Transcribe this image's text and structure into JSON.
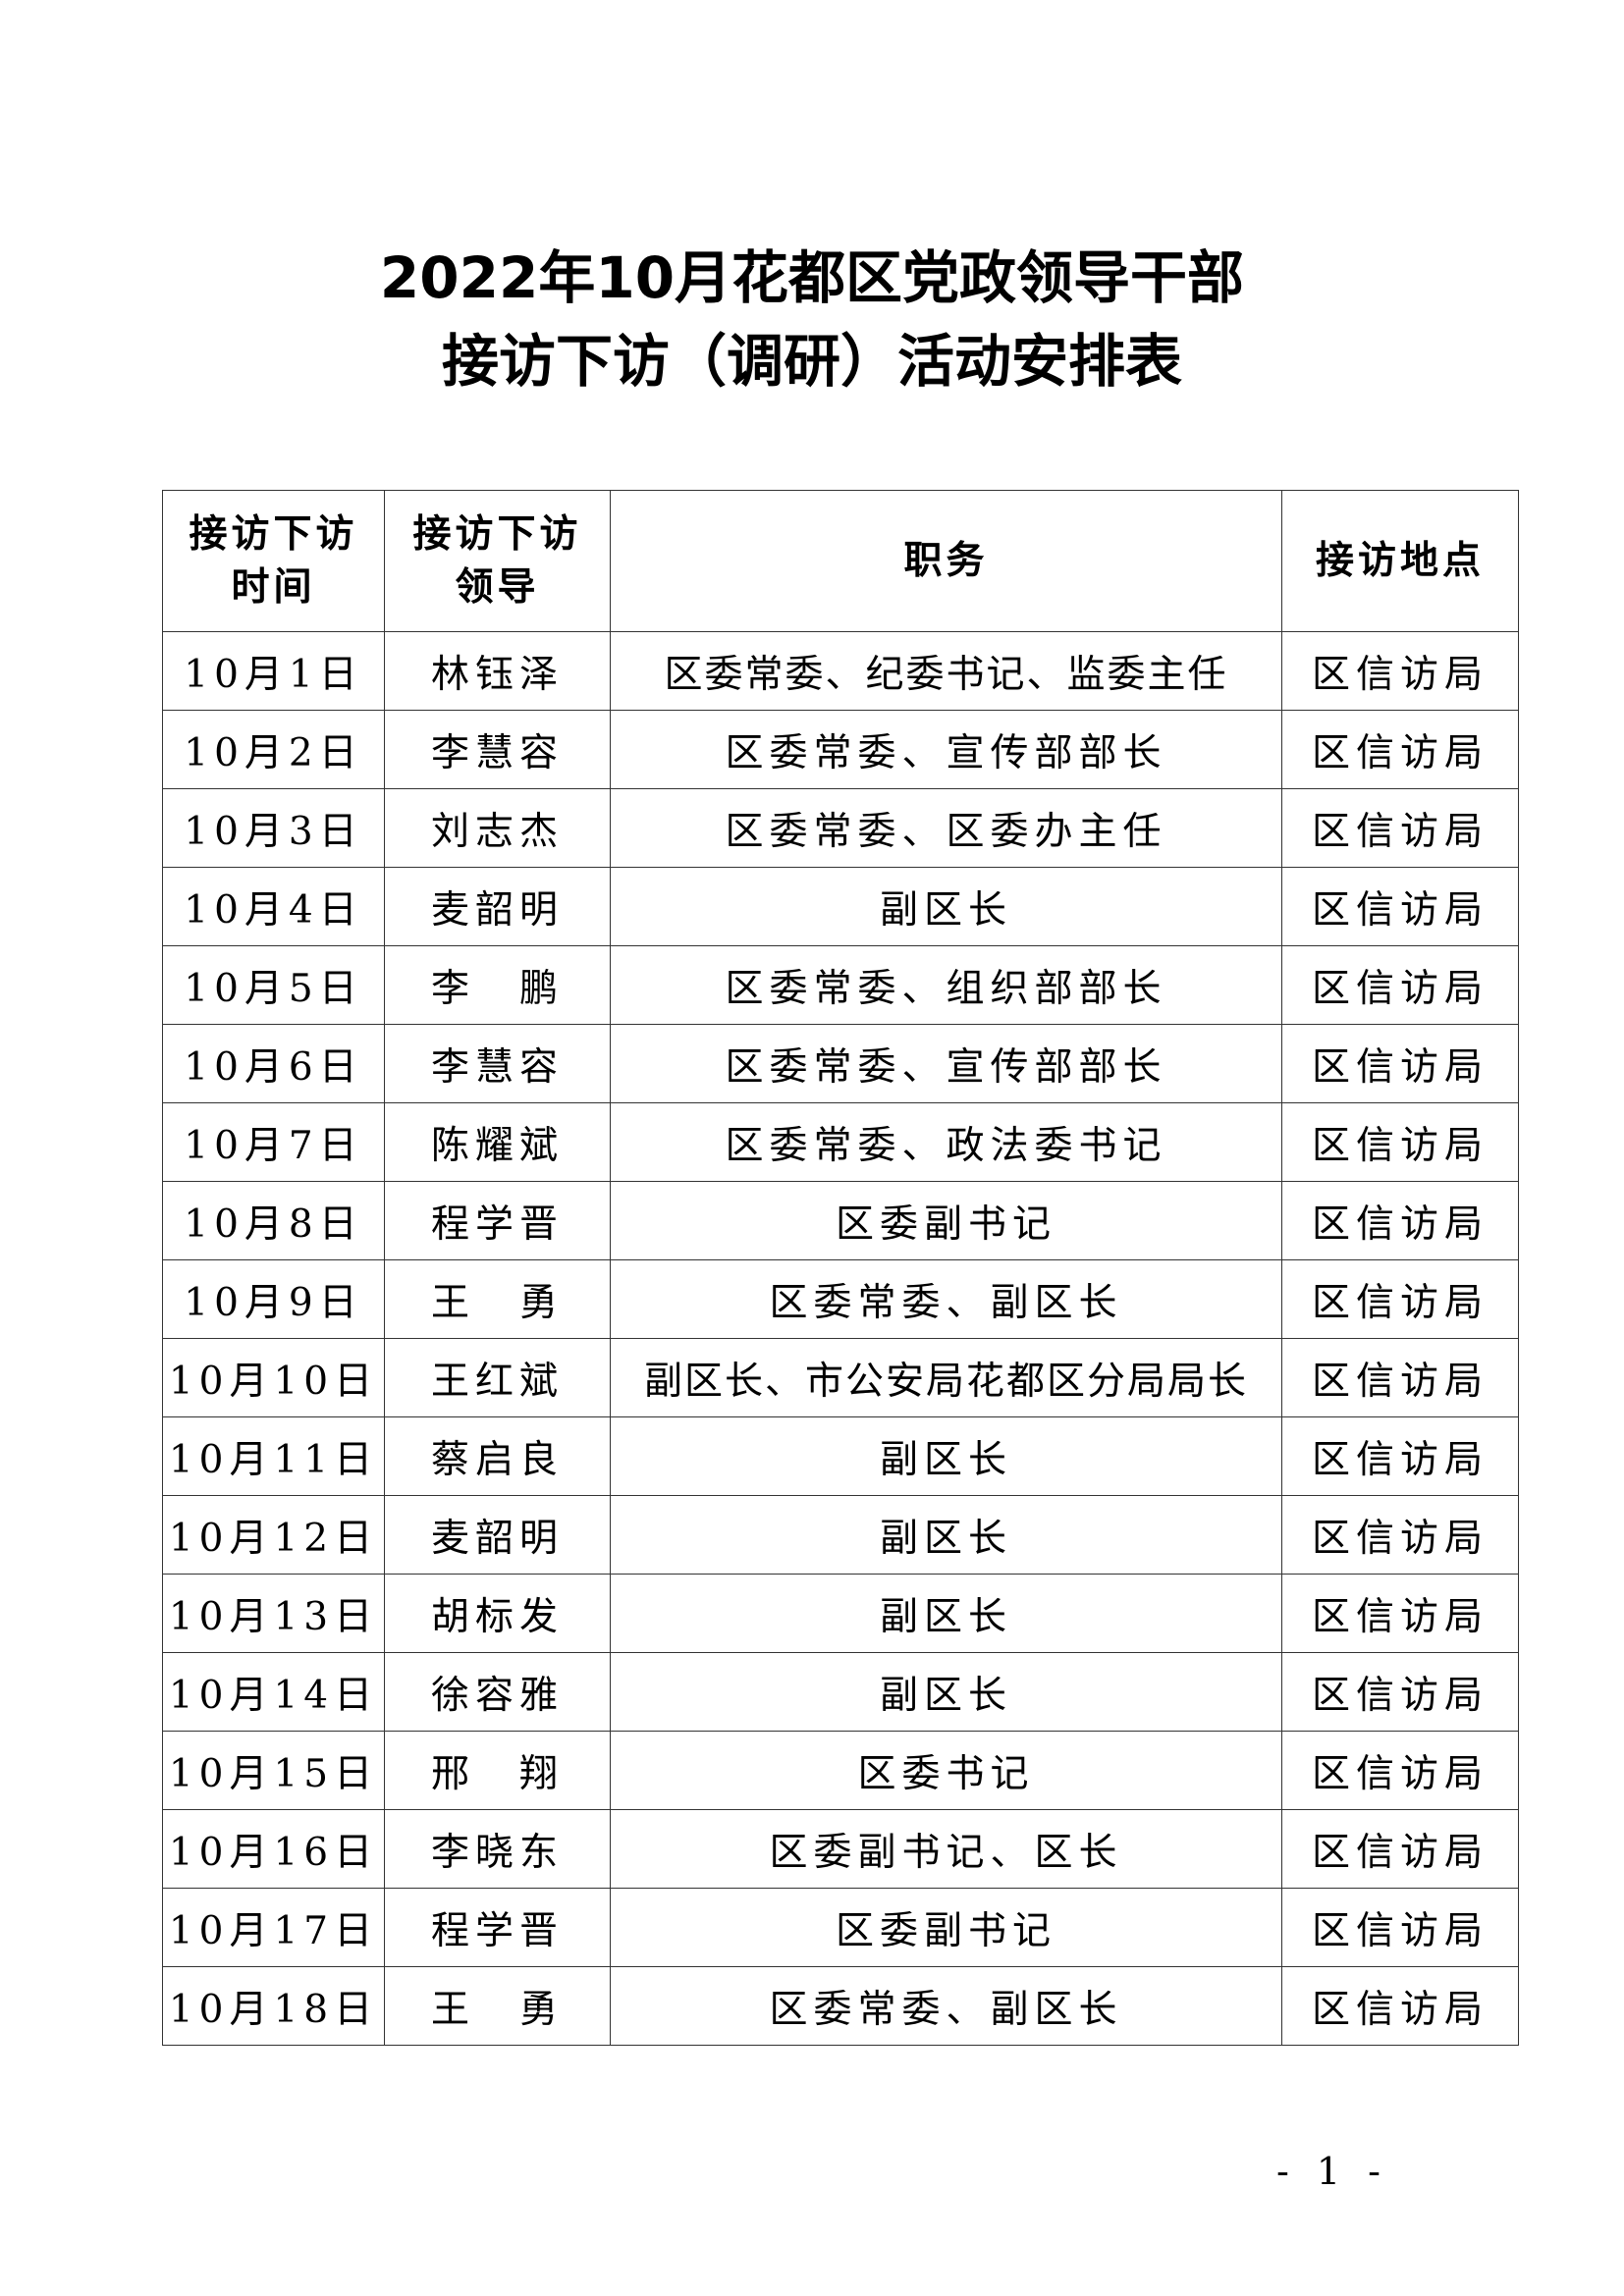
{
  "title": {
    "line1": "2022年10月花都区党政领导干部",
    "line2": "接访下访（调研）活动安排表"
  },
  "table": {
    "headers": [
      {
        "line1": "接访下访",
        "line2": "时间"
      },
      {
        "line1": "接访下访",
        "line2": "领导"
      },
      {
        "line1": "职务",
        "line2": ""
      },
      {
        "line1": "接访地点",
        "line2": ""
      }
    ],
    "rows": [
      {
        "date": "10月1日",
        "leader": "林钰泽",
        "position": "区委常委、纪委书记、监委主任",
        "location": "区信访局"
      },
      {
        "date": "10月2日",
        "leader": "李慧容",
        "position": "区委常委、宣传部部长",
        "location": "区信访局"
      },
      {
        "date": "10月3日",
        "leader": "刘志杰",
        "position": "区委常委、区委办主任",
        "location": "区信访局"
      },
      {
        "date": "10月4日",
        "leader": "麦韶明",
        "position": "副区长",
        "location": "区信访局"
      },
      {
        "date": "10月5日",
        "leader": "李　鹏",
        "position": "区委常委、组织部部长",
        "location": "区信访局"
      },
      {
        "date": "10月6日",
        "leader": "李慧容",
        "position": "区委常委、宣传部部长",
        "location": "区信访局"
      },
      {
        "date": "10月7日",
        "leader": "陈耀斌",
        "position": "区委常委、政法委书记",
        "location": "区信访局"
      },
      {
        "date": "10月8日",
        "leader": "程学晋",
        "position": "区委副书记",
        "location": "区信访局"
      },
      {
        "date": "10月9日",
        "leader": "王　勇",
        "position": "区委常委、副区长",
        "location": "区信访局"
      },
      {
        "date": "10月10日",
        "leader": "王红斌",
        "position": "副区长、市公安局花都区分局局长",
        "location": "区信访局"
      },
      {
        "date": "10月11日",
        "leader": "蔡启良",
        "position": "副区长",
        "location": "区信访局"
      },
      {
        "date": "10月12日",
        "leader": "麦韶明",
        "position": "副区长",
        "location": "区信访局"
      },
      {
        "date": "10月13日",
        "leader": "胡标发",
        "position": "副区长",
        "location": "区信访局"
      },
      {
        "date": "10月14日",
        "leader": "徐容雅",
        "position": "副区长",
        "location": "区信访局"
      },
      {
        "date": "10月15日",
        "leader": "邢　翔",
        "position": "区委书记",
        "location": "区信访局"
      },
      {
        "date": "10月16日",
        "leader": "李晓东",
        "position": "区委副书记、区长",
        "location": "区信访局"
      },
      {
        "date": "10月17日",
        "leader": "程学晋",
        "position": "区委副书记",
        "location": "区信访局"
      },
      {
        "date": "10月18日",
        "leader": "王　勇",
        "position": "区委常委、副区长",
        "location": "区信访局"
      }
    ]
  },
  "page_number": "- 1 -"
}
